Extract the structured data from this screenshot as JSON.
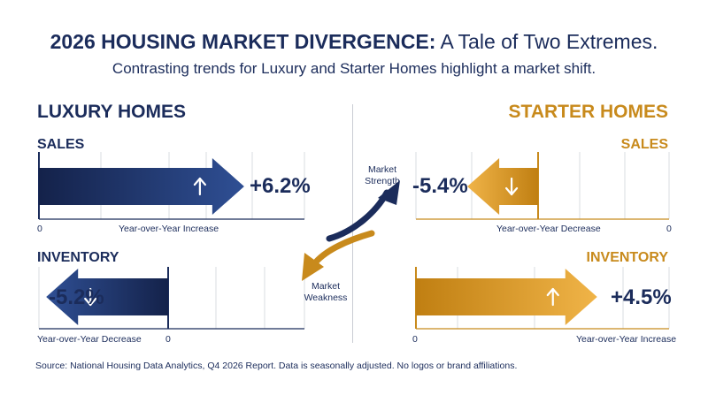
{
  "title_bold": "2026 HOUSING MARKET DIVERGENCE:",
  "title_rest": " A Tale of Two Extremes.",
  "subtitle": "Contrasting trends for Luxury and Starter Homes highlight a market shift.",
  "left_title": "LUXURY HOMES",
  "right_title": "STARTER HOMES",
  "sales_label": "SALES",
  "inventory_label": "INVENTORY",
  "center_labels": {
    "strength": "Market Strength",
    "weakness": "Market Weakness"
  },
  "source": "Source: National Housing Data Analytics, Q4 2026 Report. Data is seasonally adjusted. No logos or brand affiliations.",
  "colors": {
    "navy": "#1b2c5b",
    "gold": "#c88a1c",
    "grid": "#d9dce2"
  },
  "chart_data": [
    {
      "type": "bar",
      "group": "Luxury Homes",
      "metric": "Sales",
      "value": 6.2,
      "value_label": "+6.2%",
      "axis_label": "Year-over-Year Increase",
      "zero_label": "0",
      "direction": "up"
    },
    {
      "type": "bar",
      "group": "Luxury Homes",
      "metric": "Inventory",
      "value": -5.2,
      "value_label": "-5.2%",
      "axis_label": "Year-over-Year Decrease",
      "zero_label": "0",
      "direction": "down"
    },
    {
      "type": "bar",
      "group": "Starter Homes",
      "metric": "Sales",
      "value": -5.4,
      "value_label": "-5.4%",
      "axis_label": "Year-over-Year Decrease",
      "zero_label": "0",
      "direction": "down"
    },
    {
      "type": "bar",
      "group": "Starter Homes",
      "metric": "Inventory",
      "value": 4.5,
      "value_label": "+4.5%",
      "axis_label": "Year-over-Year Increase",
      "zero_label": "0",
      "direction": "up"
    }
  ]
}
